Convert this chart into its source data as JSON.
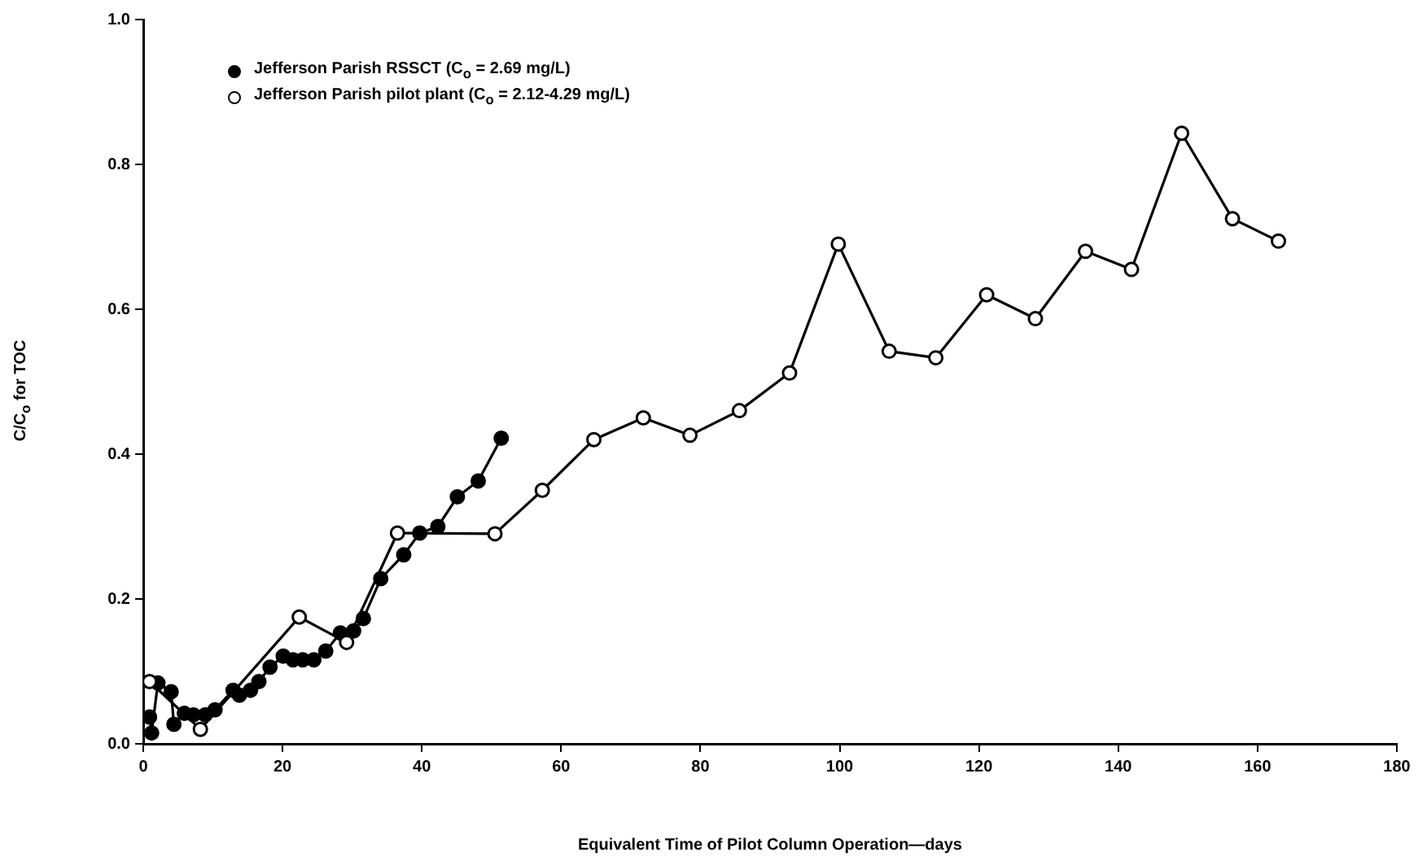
{
  "chart_data": {
    "type": "line",
    "xlabel": "Equivalent Time of Pilot Column Operation—days",
    "ylabel": "C/C$_{o}$ for TOC",
    "xlim": [
      0,
      180
    ],
    "xticks": [
      0,
      20,
      40,
      60,
      80,
      100,
      120,
      140,
      160,
      180
    ],
    "ylim": [
      0,
      1
    ],
    "yticks": [
      {
        "value": 0,
        "label": "0.0"
      },
      {
        "value": 0.2,
        "label": "0.2"
      },
      {
        "value": 0.4,
        "label": "0.4"
      },
      {
        "value": 0.6,
        "label": "0.6"
      },
      {
        "value": 0.8,
        "label": "0.8"
      },
      {
        "value": 1,
        "label": "1.0"
      }
    ],
    "grid": false,
    "legend": "top left",
    "marker": "circle",
    "line_style": "solid",
    "series": [
      {
        "name": "Jefferson Parish RSSCT (C$_{o}$ = 2.69 mg/L)",
        "color": "#000000",
        "x": [
          0.9,
          1.2,
          2.1,
          4,
          4.4,
          5.9,
          7.2,
          8.9,
          10.3,
          12.9,
          13.8,
          15.4,
          16.6,
          18.2,
          20.1,
          21.5,
          22.9,
          24.5,
          26.2,
          28.3,
          30.2,
          31.6,
          34.1,
          37.4,
          39.7,
          42.3,
          45.1,
          48.1,
          51.4
        ],
        "values": [
          0.037,
          0.015,
          0.084,
          0.072,
          0.027,
          0.042,
          0.04,
          0.04,
          0.047,
          0.074,
          0.067,
          0.074,
          0.086,
          0.106,
          0.121,
          0.116,
          0.116,
          0.116,
          0.128,
          0.153,
          0.156,
          0.173,
          0.228,
          0.261,
          0.291,
          0.3,
          0.341,
          0.363,
          0.422
        ]
      },
      {
        "name": "Jefferson Parish pilot plant (C$_{o}$ = 2.12-4.29 mg/L)",
        "color": "#000000",
        "x": [
          0.9,
          8.2,
          22.4,
          29.2,
          36.5,
          50.5,
          57.3,
          64.7,
          71.8,
          78.5,
          85.6,
          92.8,
          99.8,
          107.1,
          113.8,
          121.1,
          128.1,
          135.3,
          141.9,
          149.1,
          156.4,
          163
        ],
        "values": [
          0.086,
          0.02,
          0.175,
          0.14,
          0.291,
          0.29,
          0.35,
          0.42,
          0.45,
          0.426,
          0.46,
          0.512,
          0.69,
          0.542,
          0.533,
          0.62,
          0.587,
          0.68,
          0.655,
          0.843,
          0.725,
          0.694
        ]
      }
    ]
  }
}
